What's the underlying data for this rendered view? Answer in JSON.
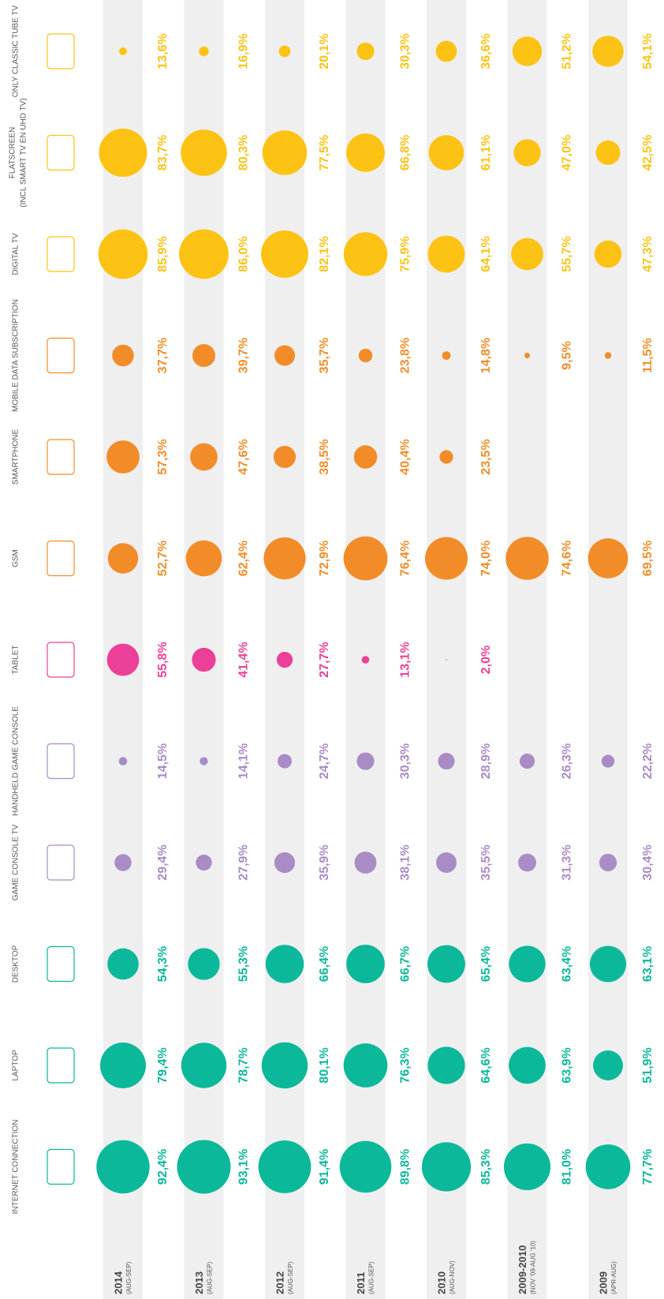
{
  "chart_data": {
    "type": "bubble",
    "categories": [
      "2014",
      "2013",
      "2012",
      "2011",
      "2010",
      "2009-2010",
      "2009"
    ],
    "category_subtitles": [
      "(AUG-SEP)",
      "(AUG-SEP)",
      "(AUG-SEP)",
      "(AUG-SEP)",
      "(AUG-NOV)",
      "(NOV '09-AUG '10)",
      "(APR-AUG)"
    ],
    "series": [
      {
        "name": "ONLY CLASSIC TUBE TV",
        "color": "#fdc314",
        "values": [
          13.6,
          16.9,
          20.1,
          30.3,
          36.6,
          51.2,
          54.1
        ],
        "value_labels": [
          "13,6%",
          "16,9%",
          "20,1%",
          "30,3%",
          "36,6%",
          "51,2%",
          "54,1%"
        ]
      },
      {
        "name": "FLATSCREEN",
        "subtitle": "(INCL SMART TV EN UHD TV)",
        "color": "#fdc314",
        "values": [
          83.7,
          80.3,
          77.5,
          66.8,
          61.1,
          47.0,
          42.5
        ],
        "value_labels": [
          "83,7%",
          "80,3%",
          "77,5%",
          "66,8%",
          "61,1%",
          "47,0%",
          "42,5%"
        ]
      },
      {
        "name": "DIGITAL TV",
        "color": "#fdc314",
        "values": [
          85.9,
          86.0,
          82.1,
          75.9,
          64.1,
          55.7,
          47.3
        ],
        "value_labels": [
          "85,9%",
          "86,0%",
          "82,1%",
          "75,9%",
          "64,1%",
          "55,7%",
          "47,3%"
        ]
      },
      {
        "name": "MOBILE DATA SUBSCRIPTION",
        "color": "#f28c28",
        "values": [
          37.7,
          39.7,
          35.7,
          23.8,
          14.8,
          9.5,
          11.5
        ],
        "value_labels": [
          "37,7%",
          "39,7%",
          "35,7%",
          "23,8%",
          "14,8%",
          "9,5%",
          "11,5%"
        ]
      },
      {
        "name": "SMARTPHONE",
        "color": "#f28c28",
        "values": [
          57.3,
          47.6,
          38.5,
          40.4,
          23.5,
          null,
          null
        ],
        "value_labels": [
          "57,3%",
          "47,6%",
          "38,5%",
          "40,4%",
          "23,5%",
          null,
          null
        ]
      },
      {
        "name": "GSM",
        "color": "#f28c28",
        "values": [
          52.7,
          62.4,
          72.9,
          76.4,
          74.0,
          74.6,
          69.5
        ],
        "value_labels": [
          "52,7%",
          "62,4%",
          "72,9%",
          "76,4%",
          "74,0%",
          "74,6%",
          "69,5%"
        ]
      },
      {
        "name": "TABLET",
        "color": "#ec3f97",
        "values": [
          55.8,
          41.4,
          27.7,
          13.1,
          2.0,
          null,
          null
        ],
        "value_labels": [
          "55,8%",
          "41,4%",
          "27,7%",
          "13,1%",
          "2,0%",
          null,
          null
        ]
      },
      {
        "name": "HANDHELD GAME CONSOLE",
        "color": "#a98bc6",
        "values": [
          14.5,
          14.1,
          24.7,
          30.3,
          28.9,
          26.3,
          22.2
        ],
        "value_labels": [
          "14,5%",
          "14,1%",
          "24,7%",
          "30,3%",
          "28,9%",
          "26,3%",
          "22,2%"
        ]
      },
      {
        "name": "GAME CONSOLE TV",
        "color": "#a98bc6",
        "values": [
          29.4,
          27.9,
          35.9,
          38.1,
          35.5,
          31.3,
          30.4
        ],
        "value_labels": [
          "29,4%",
          "27,9%",
          "35,9%",
          "38,1%",
          "35,5%",
          "31,3%",
          "30,4%"
        ]
      },
      {
        "name": "DESKTOP",
        "color": "#0bb89a",
        "values": [
          54.3,
          55.3,
          66.4,
          66.7,
          65.4,
          63.4,
          63.1
        ],
        "value_labels": [
          "54,3%",
          "55,3%",
          "66,4%",
          "66,7%",
          "65,4%",
          "63,4%",
          "63,1%"
        ]
      },
      {
        "name": "LAPTOP",
        "color": "#0bb89a",
        "values": [
          79.4,
          78.7,
          80.1,
          76.3,
          64.6,
          63.9,
          51.9
        ],
        "value_labels": [
          "79,4%",
          "78,7%",
          "80,1%",
          "76,3%",
          "64,6%",
          "63,9%",
          "51,9%"
        ]
      },
      {
        "name": "INTERNET CONNECTION",
        "color": "#0bb89a",
        "values": [
          92.4,
          93.1,
          91.4,
          89.8,
          85.3,
          81.0,
          77.7
        ],
        "value_labels": [
          "92,4%",
          "93,1%",
          "91,4%",
          "89,8%",
          "85,3%",
          "81,0%",
          "77,7%"
        ]
      }
    ]
  }
}
